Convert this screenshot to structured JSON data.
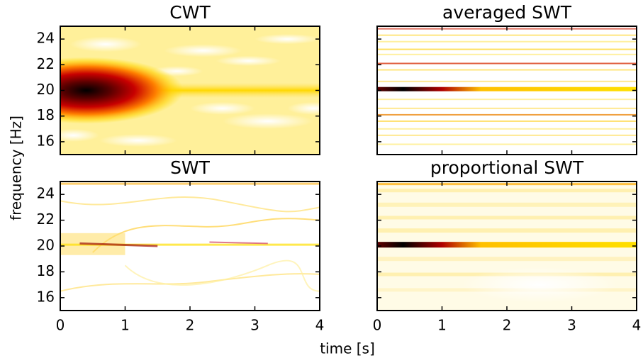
{
  "xlabel": "time [s]",
  "ylabel": "frequency [Hz]",
  "chart_data": [
    {
      "type": "heatmap",
      "title": "CWT",
      "colormap": "hot_r",
      "xlim": [
        0,
        4
      ],
      "ylim": [
        15,
        25
      ],
      "yticks": [
        16,
        18,
        20,
        22,
        24
      ]
    },
    {
      "type": "heatmap",
      "title": "averaged SWT",
      "colormap": "hot_r",
      "xlim": [
        0,
        4
      ],
      "ylim": [
        15,
        25
      ]
    },
    {
      "type": "heatmap",
      "title": "SWT",
      "colormap": "hot_r",
      "xlim": [
        0,
        4
      ],
      "ylim": [
        15,
        25
      ],
      "xticks": [
        0,
        1,
        2,
        3,
        4
      ],
      "yticks": [
        16,
        18,
        20,
        22,
        24
      ]
    },
    {
      "type": "heatmap",
      "title": "proportional SWT",
      "colormap": "hot_r",
      "xlim": [
        0,
        4
      ],
      "ylim": [
        15,
        25
      ],
      "xticks": [
        0,
        1,
        2,
        3,
        4
      ]
    }
  ]
}
